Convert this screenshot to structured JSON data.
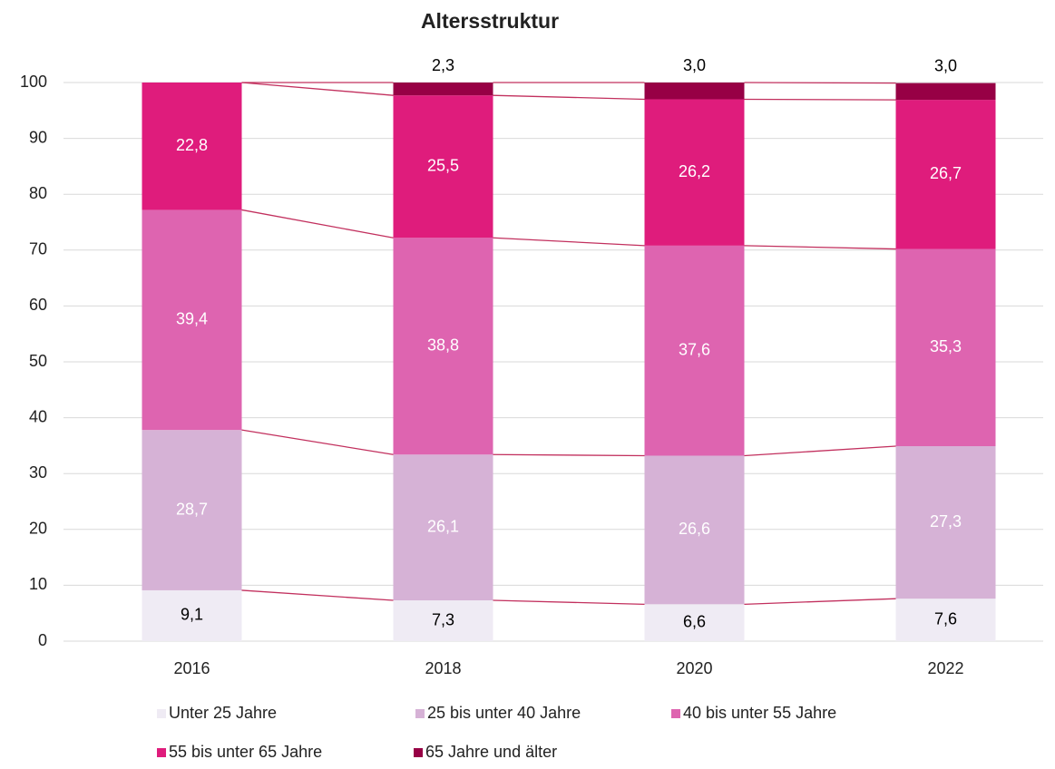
{
  "chart_data": {
    "type": "stacked-bar",
    "title": "Altersstruktur",
    "categories": [
      "2016",
      "2018",
      "2020",
      "2022"
    ],
    "series": [
      {
        "name": "Unter 25 Jahre",
        "color": "#efebf4",
        "label_color": "#000000",
        "values": [
          9.1,
          7.3,
          6.6,
          7.6
        ],
        "value_labels": [
          "9,1",
          "7,3",
          "6,6",
          "7,6"
        ]
      },
      {
        "name": "25 bis unter 40 Jahre",
        "color": "#d6b2d6",
        "label_color": "#ffffff",
        "values": [
          28.7,
          26.1,
          26.6,
          27.3
        ],
        "value_labels": [
          "28,7",
          "26,1",
          "26,6",
          "27,3"
        ]
      },
      {
        "name": "40 bis unter 55 Jahre",
        "color": "#de64b0",
        "label_color": "#ffffff",
        "values": [
          39.4,
          38.8,
          37.6,
          35.3
        ],
        "value_labels": [
          "39,4",
          "38,8",
          "37,6",
          "35,3"
        ]
      },
      {
        "name": "55 bis unter 65 Jahre",
        "color": "#df1c7c",
        "label_color": "#ffffff",
        "values": [
          22.8,
          25.5,
          26.2,
          26.7
        ],
        "value_labels": [
          "22,8",
          "25,5",
          "26,2",
          "26,7"
        ]
      },
      {
        "name": "65 Jahre und älter",
        "color": "#970045",
        "label_color": "#000000",
        "values": [
          0,
          2.3,
          3.0,
          3.0
        ],
        "value_labels": [
          null,
          "2,3",
          "3,0",
          "3,0"
        ]
      }
    ],
    "ylim": [
      0,
      100
    ],
    "yticks": [
      0,
      10,
      20,
      30,
      40,
      50,
      60,
      70,
      80,
      90,
      100
    ],
    "grid": true,
    "connector_color": "#c2305e"
  }
}
